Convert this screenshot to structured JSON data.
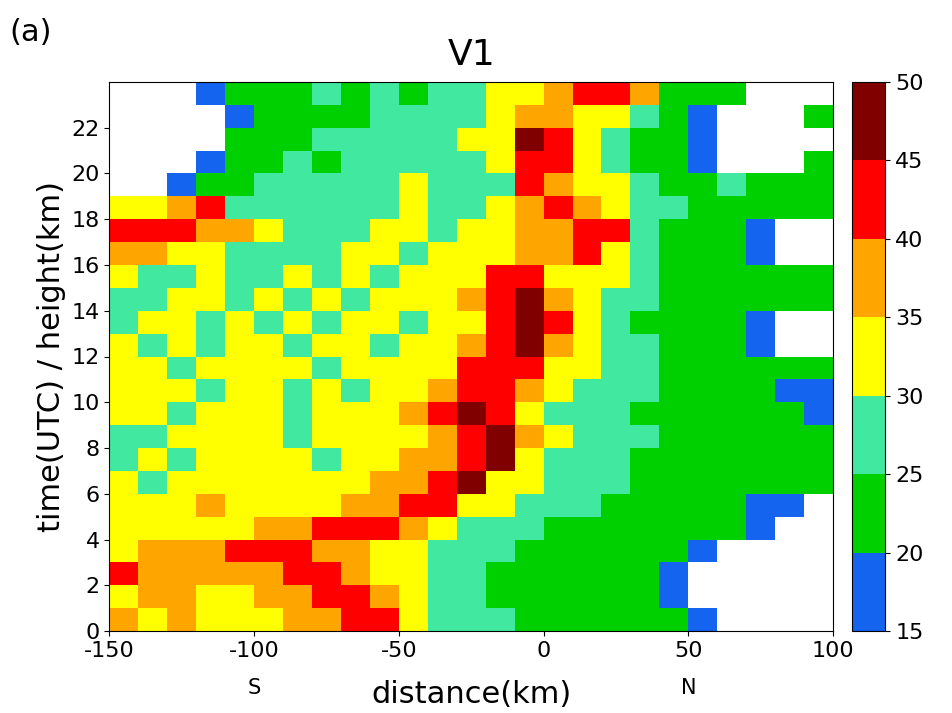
{
  "chart_data": {
    "type": "heatmap",
    "title": "V1",
    "panel_label": "(a)",
    "x_label": "distance(km)",
    "y_label": "time(UTC) / height(km)",
    "annotations": [
      {
        "text": "S",
        "x": -100
      },
      {
        "text": "N",
        "x": 50
      }
    ],
    "xlim": [
      -150,
      100
    ],
    "xticks": [
      -150,
      -100,
      -50,
      0,
      50,
      100
    ],
    "ylim": [
      0,
      24
    ],
    "yticks": [
      0,
      2,
      4,
      6,
      8,
      10,
      12,
      14,
      16,
      18,
      20,
      22
    ],
    "x_edges": [
      -150,
      -140,
      -130,
      -120,
      -110,
      -100,
      -90,
      -80,
      -70,
      -60,
      -50,
      -40,
      -30,
      -20,
      -10,
      0,
      10,
      20,
      30,
      40,
      50,
      60,
      70,
      80,
      90,
      100
    ],
    "y_edges": [
      0,
      1,
      2,
      3,
      4,
      5,
      6,
      7,
      8,
      9,
      10,
      11,
      12,
      13,
      14,
      15,
      16,
      17,
      18,
      19,
      20,
      21,
      22,
      23,
      24
    ],
    "colorbar_levels": [
      15,
      20,
      25,
      30,
      35,
      40,
      45,
      50
    ],
    "colorbar_ticks": [
      15,
      20,
      25,
      30,
      35,
      40,
      45,
      50
    ],
    "colors": [
      "#1464f0",
      "#00d000",
      "#40e8a0",
      "#ffff00",
      "#ffa500",
      "#ff0000",
      "#800000"
    ],
    "cells": [
      [
        37,
        32,
        37,
        32,
        32,
        32,
        37,
        37,
        42,
        42,
        32,
        27,
        27,
        27,
        22,
        22,
        22,
        22,
        22,
        22,
        17,
        null,
        null,
        null,
        null
      ],
      [
        32,
        37,
        37,
        32,
        32,
        37,
        37,
        42,
        42,
        37,
        32,
        27,
        27,
        22,
        22,
        22,
        22,
        22,
        22,
        17,
        null,
        null,
        null,
        null,
        null
      ],
      [
        42,
        37,
        37,
        37,
        37,
        37,
        42,
        42,
        37,
        32,
        32,
        27,
        27,
        22,
        22,
        22,
        22,
        22,
        22,
        17,
        null,
        null,
        null,
        null,
        null
      ],
      [
        32,
        37,
        37,
        37,
        42,
        42,
        42,
        37,
        37,
        32,
        32,
        27,
        27,
        27,
        22,
        22,
        22,
        22,
        22,
        22,
        17,
        null,
        null,
        null,
        null
      ],
      [
        32,
        32,
        32,
        32,
        32,
        37,
        37,
        42,
        42,
        42,
        37,
        32,
        27,
        27,
        27,
        22,
        22,
        22,
        22,
        22,
        22,
        22,
        17,
        null,
        null
      ],
      [
        32,
        32,
        32,
        37,
        32,
        32,
        32,
        32,
        37,
        37,
        42,
        42,
        32,
        32,
        27,
        27,
        27,
        22,
        22,
        22,
        22,
        22,
        17,
        17,
        null
      ],
      [
        32,
        27,
        32,
        32,
        32,
        32,
        32,
        32,
        32,
        37,
        37,
        42,
        47,
        32,
        32,
        27,
        27,
        27,
        22,
        22,
        22,
        22,
        22,
        22,
        22
      ],
      [
        27,
        32,
        27,
        32,
        32,
        32,
        32,
        27,
        32,
        32,
        37,
        37,
        42,
        47,
        32,
        27,
        27,
        27,
        22,
        22,
        22,
        22,
        22,
        22,
        22
      ],
      [
        27,
        27,
        32,
        32,
        32,
        32,
        27,
        32,
        32,
        32,
        32,
        37,
        42,
        47,
        37,
        32,
        27,
        27,
        27,
        22,
        22,
        22,
        22,
        22,
        22
      ],
      [
        32,
        32,
        27,
        32,
        32,
        32,
        27,
        32,
        32,
        32,
        37,
        42,
        47,
        42,
        32,
        27,
        27,
        27,
        22,
        22,
        22,
        22,
        22,
        22,
        17
      ],
      [
        32,
        32,
        32,
        27,
        32,
        32,
        27,
        32,
        27,
        32,
        32,
        37,
        42,
        42,
        37,
        32,
        27,
        27,
        27,
        22,
        22,
        22,
        22,
        17,
        17
      ],
      [
        32,
        32,
        27,
        32,
        32,
        32,
        32,
        27,
        32,
        32,
        32,
        32,
        42,
        42,
        42,
        32,
        32,
        27,
        27,
        22,
        22,
        22,
        22,
        22,
        22
      ],
      [
        32,
        27,
        32,
        27,
        32,
        32,
        27,
        32,
        32,
        27,
        32,
        32,
        37,
        42,
        47,
        37,
        32,
        27,
        27,
        22,
        22,
        22,
        17,
        null,
        null
      ],
      [
        27,
        32,
        32,
        27,
        32,
        27,
        32,
        27,
        32,
        32,
        27,
        32,
        32,
        42,
        47,
        42,
        32,
        27,
        22,
        22,
        22,
        22,
        17,
        null,
        null
      ],
      [
        27,
        27,
        32,
        32,
        27,
        32,
        27,
        32,
        27,
        32,
        32,
        32,
        37,
        42,
        47,
        37,
        32,
        27,
        27,
        22,
        22,
        22,
        22,
        22,
        22
      ],
      [
        32,
        27,
        27,
        32,
        27,
        27,
        32,
        27,
        32,
        27,
        32,
        32,
        32,
        42,
        42,
        32,
        32,
        32,
        27,
        22,
        22,
        22,
        22,
        22,
        22
      ],
      [
        37,
        37,
        32,
        32,
        27,
        27,
        27,
        27,
        32,
        32,
        27,
        32,
        32,
        32,
        37,
        37,
        42,
        32,
        27,
        22,
        22,
        22,
        17,
        null,
        null
      ],
      [
        42,
        42,
        42,
        37,
        37,
        32,
        27,
        27,
        27,
        32,
        32,
        27,
        32,
        32,
        37,
        37,
        42,
        42,
        27,
        22,
        22,
        22,
        17,
        null,
        null
      ],
      [
        32,
        32,
        37,
        42,
        27,
        27,
        27,
        27,
        27,
        27,
        32,
        27,
        27,
        32,
        37,
        42,
        37,
        32,
        27,
        27,
        22,
        22,
        22,
        22,
        22
      ],
      [
        null,
        null,
        17,
        22,
        22,
        27,
        27,
        27,
        27,
        27,
        32,
        27,
        27,
        27,
        42,
        37,
        32,
        32,
        27,
        22,
        22,
        27,
        22,
        22,
        22
      ],
      [
        null,
        null,
        null,
        17,
        22,
        22,
        27,
        22,
        27,
        27,
        27,
        27,
        27,
        32,
        42,
        42,
        32,
        27,
        22,
        22,
        17,
        null,
        null,
        null,
        22
      ],
      [
        null,
        null,
        null,
        null,
        22,
        22,
        22,
        27,
        27,
        27,
        27,
        27,
        32,
        32,
        47,
        42,
        32,
        27,
        22,
        22,
        17,
        null,
        null,
        null,
        null
      ],
      [
        null,
        null,
        null,
        null,
        17,
        22,
        22,
        22,
        22,
        27,
        27,
        27,
        27,
        32,
        37,
        37,
        32,
        32,
        27,
        22,
        17,
        null,
        null,
        null,
        22
      ],
      [
        null,
        null,
        null,
        17,
        22,
        22,
        22,
        27,
        22,
        27,
        22,
        27,
        27,
        32,
        32,
        37,
        42,
        42,
        37,
        22,
        22,
        22,
        null,
        null,
        null
      ]
    ]
  }
}
